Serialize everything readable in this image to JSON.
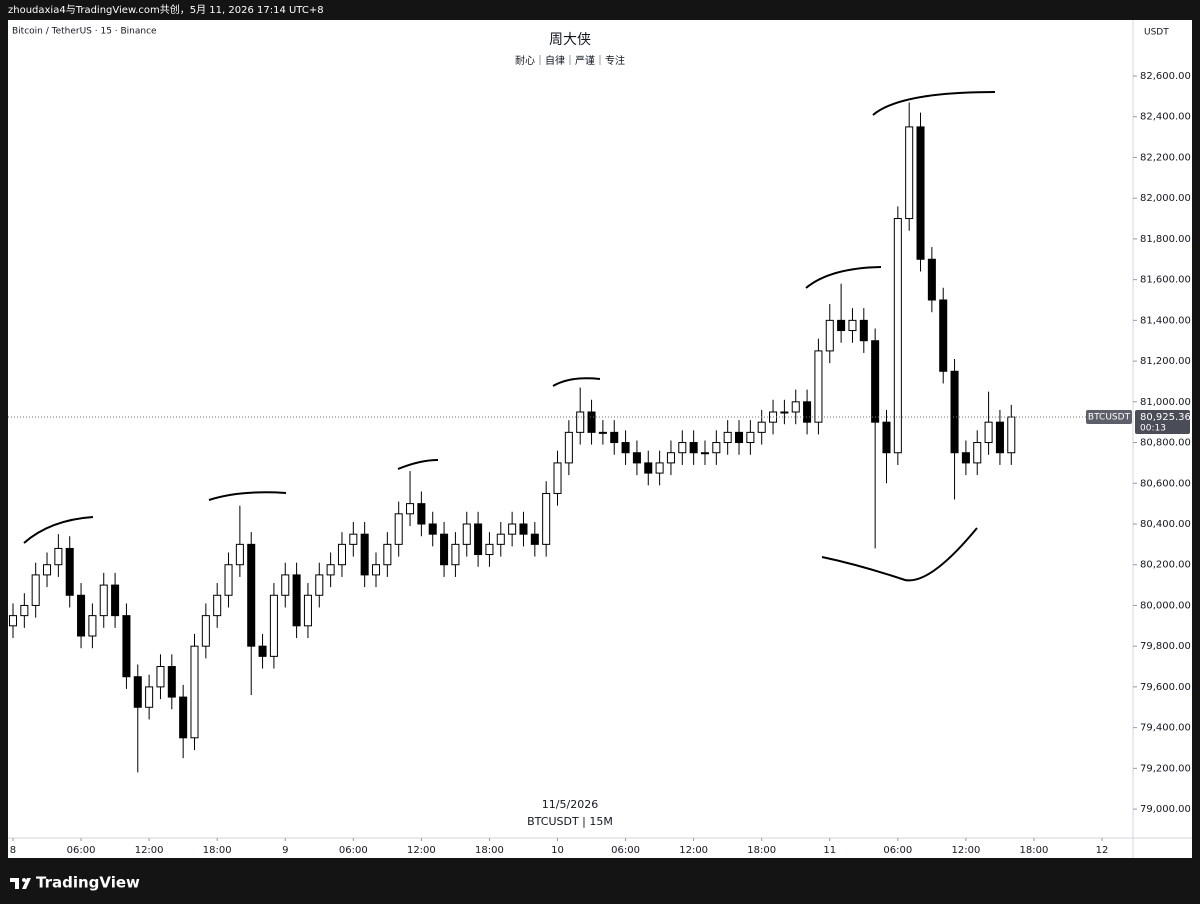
{
  "header": "zhoudaxia4与TradingView.com共创，5月 11, 2026 17:14 UTC+8",
  "footer": "TradingView",
  "chart_data": {
    "type": "candlestick",
    "symbol": "Bitcoin / TetherUS · 15 · Binance",
    "title": "周大侠",
    "subtitle": "耐心｜自律｜严谨｜专注",
    "currency": "USDT",
    "watermark_date": "11/5/2026",
    "watermark_symbol": "BTCUSDT | 15M",
    "last_price": {
      "value": 80925.36,
      "label": "80,925.36"
    },
    "countdown": "00:13",
    "up_color": "#ffffff",
    "down_color": "#000000",
    "border_color": "#000000",
    "xlim": [
      -0.44,
      98.73
    ],
    "xticks": [
      {
        "value": 0,
        "label": "8"
      },
      {
        "value": 6,
        "label": "06:00"
      },
      {
        "value": 12,
        "label": "12:00"
      },
      {
        "value": 18,
        "label": "18:00"
      },
      {
        "value": 24,
        "label": "9"
      },
      {
        "value": 30,
        "label": "06:00"
      },
      {
        "value": 36,
        "label": "12:00"
      },
      {
        "value": 42,
        "label": "18:00"
      },
      {
        "value": 48,
        "label": "10"
      },
      {
        "value": 54,
        "label": "06:00"
      },
      {
        "value": 60,
        "label": "12:00"
      },
      {
        "value": 66,
        "label": "18:00"
      },
      {
        "value": 72,
        "label": "11"
      },
      {
        "value": 78,
        "label": "06:00"
      },
      {
        "value": 84,
        "label": "12:00"
      },
      {
        "value": 90,
        "label": "18:00"
      },
      {
        "value": 96,
        "label": "12"
      }
    ],
    "ylim": [
      78858,
      82875
    ],
    "yticks": [
      {
        "value": 79000,
        "label": "79,000.00"
      },
      {
        "value": 79200,
        "label": "79,200.00"
      },
      {
        "value": 79400,
        "label": "79,400.00"
      },
      {
        "value": 79600,
        "label": "79,600.00"
      },
      {
        "value": 79800,
        "label": "79,800.00"
      },
      {
        "value": 80000,
        "label": "80,000.00"
      },
      {
        "value": 80200,
        "label": "80,200.00"
      },
      {
        "value": 80400,
        "label": "80,400.00"
      },
      {
        "value": 80600,
        "label": "80,600.00"
      },
      {
        "value": 80800,
        "label": "80,800.00"
      },
      {
        "value": 81000,
        "label": "81,000.00"
      },
      {
        "value": 81200,
        "label": "81,200.00"
      },
      {
        "value": 81400,
        "label": "81,400.00"
      },
      {
        "value": 81600,
        "label": "81,600.00"
      },
      {
        "value": 81800,
        "label": "81,800.00"
      },
      {
        "value": 82000,
        "label": "82,000.00"
      },
      {
        "value": 82200,
        "label": "82,200.00"
      },
      {
        "value": 82400,
        "label": "82,400.00"
      },
      {
        "value": 82600,
        "label": "82,600.00"
      }
    ],
    "x": [
      0,
      1,
      2,
      3,
      4,
      5,
      6,
      7,
      8,
      9,
      10,
      11,
      12,
      13,
      14,
      15,
      16,
      17,
      18,
      19,
      20,
      21,
      22,
      23,
      24,
      25,
      26,
      27,
      28,
      29,
      30,
      31,
      32,
      33,
      34,
      35,
      36,
      37,
      38,
      39,
      40,
      41,
      42,
      43,
      44,
      45,
      46,
      47,
      48,
      49,
      50,
      51,
      52,
      53,
      54,
      55,
      56,
      57,
      58,
      59,
      60,
      61,
      62,
      63,
      64,
      65,
      66,
      67,
      68,
      69,
      70,
      71,
      72,
      73,
      74,
      75,
      76,
      77,
      78,
      79,
      80,
      81,
      82,
      83,
      84,
      85,
      86,
      87,
      88
    ],
    "series": [
      {
        "name": "BTCUSDT",
        "open": [
          79900,
          79950,
          80000,
          80150,
          80200,
          80280,
          80050,
          79850,
          79950,
          80100,
          79950,
          79650,
          79500,
          79600,
          79700,
          79550,
          79350,
          79800,
          79950,
          80050,
          80200,
          80300,
          79800,
          79750,
          80050,
          80150,
          79900,
          80050,
          80150,
          80200,
          80300,
          80350,
          80150,
          80200,
          80300,
          80450,
          80500,
          80400,
          80350,
          80200,
          80300,
          80400,
          80250,
          80300,
          80350,
          80400,
          80350,
          80300,
          80550,
          80700,
          80850,
          80950,
          80850,
          80850,
          80800,
          80750,
          80700,
          80650,
          80700,
          80750,
          80800,
          80750,
          80750,
          80800,
          80850,
          80800,
          80850,
          80900,
          80950,
          80950,
          81000,
          80900,
          81250,
          81400,
          81350,
          81400,
          81300,
          80900,
          80750,
          81900,
          82350,
          81700,
          81500,
          81150,
          80750,
          80700,
          80800,
          80900,
          80750
        ],
        "high": [
          80010,
          80060,
          80210,
          80260,
          80350,
          80340,
          80110,
          80010,
          80160,
          80160,
          80010,
          79710,
          79660,
          79760,
          79760,
          79610,
          79860,
          80010,
          80110,
          80260,
          80490,
          80360,
          79860,
          80110,
          80210,
          80210,
          80110,
          80210,
          80260,
          80360,
          80410,
          80410,
          80260,
          80360,
          80510,
          80660,
          80560,
          80460,
          80410,
          80360,
          80460,
          80460,
          80360,
          80410,
          80460,
          80460,
          80410,
          80610,
          80760,
          80910,
          81070,
          81010,
          80910,
          80910,
          80860,
          80810,
          80760,
          80760,
          80810,
          80860,
          80860,
          80810,
          80860,
          80910,
          80910,
          80910,
          80960,
          81010,
          81010,
          81060,
          81060,
          81310,
          81480,
          81580,
          81460,
          81460,
          81360,
          80960,
          81960,
          82470,
          82420,
          81760,
          81560,
          81210,
          80810,
          80860,
          81050,
          80960,
          80985
        ],
        "low": [
          79840,
          79890,
          79940,
          80090,
          80140,
          79990,
          79790,
          79790,
          79890,
          79890,
          79590,
          79180,
          79440,
          79540,
          79490,
          79250,
          79290,
          79740,
          79890,
          79990,
          80140,
          79560,
          79690,
          79690,
          79990,
          79840,
          79840,
          79990,
          80090,
          80140,
          80240,
          80090,
          80090,
          80140,
          80240,
          80390,
          80340,
          80290,
          80140,
          80140,
          80240,
          80190,
          80190,
          80240,
          80290,
          80290,
          80240,
          80240,
          80490,
          80640,
          80790,
          80790,
          80790,
          80740,
          80690,
          80640,
          80590,
          80590,
          80640,
          80690,
          80690,
          80690,
          80690,
          80740,
          80740,
          80740,
          80790,
          80840,
          80890,
          80890,
          80840,
          80840,
          81190,
          81290,
          81290,
          81240,
          80280,
          80600,
          80690,
          81840,
          81640,
          81440,
          81090,
          80520,
          80640,
          80640,
          80740,
          80690,
          80690
        ],
        "close": [
          79950,
          80000,
          80150,
          80200,
          80280,
          80050,
          79850,
          79950,
          80100,
          79950,
          79650,
          79500,
          79600,
          79700,
          79550,
          79350,
          79800,
          79950,
          80050,
          80200,
          80300,
          79800,
          79750,
          80050,
          80150,
          79900,
          80050,
          80150,
          80200,
          80300,
          80350,
          80150,
          80200,
          80300,
          80450,
          80500,
          80400,
          80350,
          80200,
          80300,
          80400,
          80250,
          80300,
          80350,
          80400,
          80350,
          80300,
          80550,
          80700,
          80850,
          80950,
          80850,
          80850,
          80800,
          80750,
          80700,
          80650,
          80700,
          80750,
          80800,
          80750,
          80750,
          80800,
          80850,
          80800,
          80850,
          80900,
          80950,
          80950,
          81000,
          80900,
          81250,
          81400,
          81350,
          81400,
          81300,
          80900,
          80750,
          81900,
          82350,
          81700,
          81500,
          81150,
          80750,
          80700,
          80800,
          80900,
          80750,
          80925.36
        ]
      }
    ]
  }
}
